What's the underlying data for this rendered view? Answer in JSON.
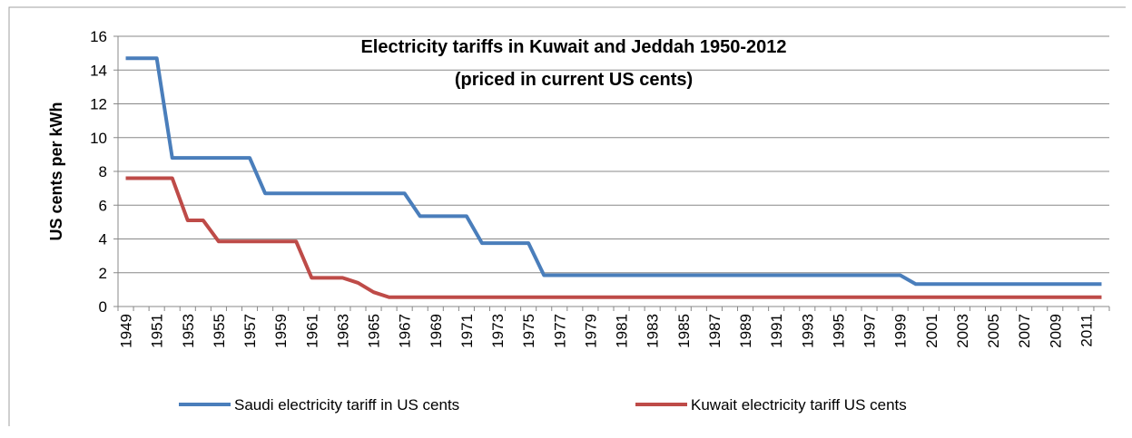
{
  "chart_data": {
    "type": "line",
    "title": "Electricity tariffs in Kuwait and Jeddah 1950-2012",
    "subtitle": "(priced in current US cents)",
    "y_label": "US cents per kWh",
    "categories": [
      "1949",
      null,
      "1951",
      null,
      "1953",
      null,
      "1955",
      null,
      "1957",
      null,
      "1959",
      null,
      "1961",
      null,
      "1963",
      null,
      "1965",
      null,
      "1967",
      null,
      "1969",
      null,
      "1971",
      null,
      "1973",
      null,
      "1975",
      null,
      "1977",
      null,
      "1979",
      null,
      "1981",
      null,
      "1983",
      null,
      "1985",
      null,
      "1987",
      null,
      "1989",
      null,
      "1991",
      null,
      "1993",
      null,
      "1995",
      null,
      "1997",
      null,
      "1999",
      null,
      "2001",
      null,
      "2003",
      null,
      "2005",
      null,
      "2007",
      null,
      "2009",
      null,
      "2011",
      null
    ],
    "series": [
      {
        "name": "Saudi electricity tariff in US cents",
        "color": "#4a7ebb",
        "values": [
          14.7,
          14.7,
          14.7,
          8.8,
          8.8,
          8.8,
          8.8,
          8.8,
          8.8,
          6.7,
          6.7,
          6.7,
          6.7,
          6.7,
          6.7,
          6.7,
          6.7,
          6.7,
          6.7,
          5.35,
          5.35,
          5.35,
          5.35,
          3.75,
          3.75,
          3.75,
          3.75,
          1.85,
          1.85,
          1.85,
          1.85,
          1.85,
          1.85,
          1.85,
          1.85,
          1.85,
          1.85,
          1.85,
          1.85,
          1.85,
          1.85,
          1.85,
          1.85,
          1.85,
          1.85,
          1.85,
          1.85,
          1.85,
          1.85,
          1.85,
          1.85,
          1.33,
          1.33,
          1.33,
          1.33,
          1.33,
          1.33,
          1.33,
          1.33,
          1.33,
          1.33,
          1.33,
          1.33,
          1.33
        ]
      },
      {
        "name": "Kuwait electricity tariff US cents",
        "color": "#be4b48",
        "values": [
          7.6,
          7.6,
          7.6,
          7.6,
          5.1,
          5.1,
          3.85,
          3.85,
          3.85,
          3.85,
          3.85,
          3.85,
          1.7,
          1.7,
          1.7,
          1.4,
          0.85,
          0.55,
          0.55,
          0.55,
          0.55,
          0.55,
          0.55,
          0.55,
          0.55,
          0.55,
          0.55,
          0.55,
          0.55,
          0.55,
          0.55,
          0.55,
          0.55,
          0.55,
          0.55,
          0.55,
          0.55,
          0.55,
          0.55,
          0.55,
          0.55,
          0.55,
          0.55,
          0.55,
          0.55,
          0.55,
          0.55,
          0.55,
          0.55,
          0.55,
          0.55,
          0.55,
          0.55,
          0.55,
          0.55,
          0.55,
          0.55,
          0.55,
          0.55,
          0.55,
          0.55,
          0.55,
          0.55,
          0.55
        ]
      }
    ],
    "ylim": [
      0,
      16
    ],
    "yticks": [
      0,
      2,
      4,
      6,
      8,
      10,
      12,
      14,
      16
    ],
    "grid": true,
    "legend": "bottom"
  }
}
